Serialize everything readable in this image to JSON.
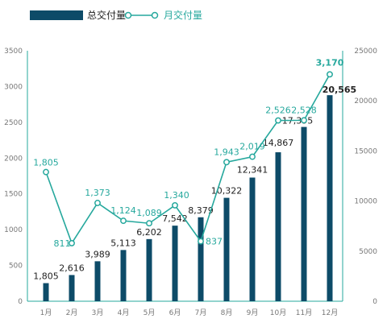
{
  "chart_data": {
    "type": "bar+line",
    "categories": [
      "1月",
      "2月",
      "3月",
      "4月",
      "5月",
      "6月",
      "7月",
      "8月",
      "9月",
      "10月",
      "11月",
      "12月"
    ],
    "series": [
      {
        "name": "总交付量",
        "type": "bar",
        "axis": "right",
        "values": [
          1805,
          2616,
          3989,
          5113,
          6202,
          7542,
          8379,
          10322,
          12341,
          14867,
          17395,
          20565
        ],
        "labels": [
          "1,805",
          "2,616",
          "3,989",
          "5,113",
          "6,202",
          "7,542",
          "8,379",
          "10,322",
          "12,341",
          "14,867",
          "17,395",
          "20,565"
        ]
      },
      {
        "name": "月交付量",
        "type": "line",
        "axis": "left",
        "values": [
          1805,
          811,
          1373,
          1124,
          1089,
          1340,
          837,
          1943,
          2019,
          2526,
          2528,
          3170
        ],
        "labels": [
          "1,805",
          "811",
          "1,373",
          "1,124",
          "1,089",
          "1,340",
          "837",
          "1,943",
          "2,019",
          "2,526",
          "2,528",
          "3,170"
        ]
      }
    ],
    "y_left": {
      "min": 0,
      "max": 3500,
      "ticks": [
        "0",
        "500",
        "1000",
        "1500",
        "2000",
        "2500",
        "3000",
        "3500"
      ]
    },
    "y_right": {
      "min": 0,
      "max": 25000,
      "ticks": [
        "0",
        "5000",
        "10000",
        "15000",
        "20000",
        "25000"
      ]
    },
    "legend_position": "top-left",
    "grid": false,
    "colors": {
      "bar": "#0d4b68",
      "line": "#26a89d",
      "axis": "#26a89d",
      "tick_text": "#777777"
    }
  }
}
